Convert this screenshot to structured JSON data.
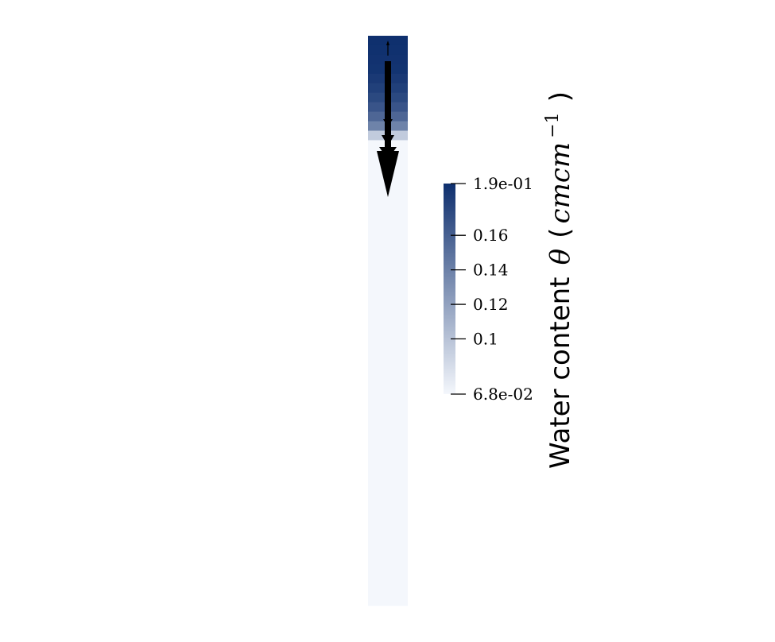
{
  "chart_data": {
    "type": "heatmap",
    "colormap": {
      "low": "#f4f7fc",
      "high": "#0e2f6e"
    },
    "colorbar": {
      "range": [
        0.068,
        0.19
      ],
      "ticks": [
        {
          "value": 0.19,
          "label": "1.9e-01"
        },
        {
          "value": 0.16,
          "label": "0.16"
        },
        {
          "value": 0.14,
          "label": "0.14"
        },
        {
          "value": 0.12,
          "label": "0.12"
        },
        {
          "value": 0.1,
          "label": "0.1"
        },
        {
          "value": 0.068,
          "label": "6.8e-02"
        }
      ],
      "title": {
        "text": "Water content",
        "symbol": "θ",
        "unit_open": "(",
        "unit": "cmcm",
        "unit_exponent": "−1",
        "unit_close": ")"
      }
    },
    "column_profile": [
      {
        "depth_fraction": 0.0,
        "theta": 0.19
      },
      {
        "depth_fraction": 0.06,
        "theta": 0.187
      },
      {
        "depth_fraction": 0.1,
        "theta": 0.178
      },
      {
        "depth_fraction": 0.13,
        "theta": 0.165
      },
      {
        "depth_fraction": 0.15,
        "theta": 0.15
      },
      {
        "depth_fraction": 0.165,
        "theta": 0.13
      },
      {
        "depth_fraction": 0.175,
        "theta": 0.095
      },
      {
        "depth_fraction": 0.18,
        "theta": 0.068
      },
      {
        "depth_fraction": 1.0,
        "theta": 0.068
      }
    ],
    "flux_arrows": [
      {
        "direction": "up",
        "magnitude": 0.05
      },
      {
        "direction": "down",
        "magnitude": 1.0
      }
    ]
  }
}
